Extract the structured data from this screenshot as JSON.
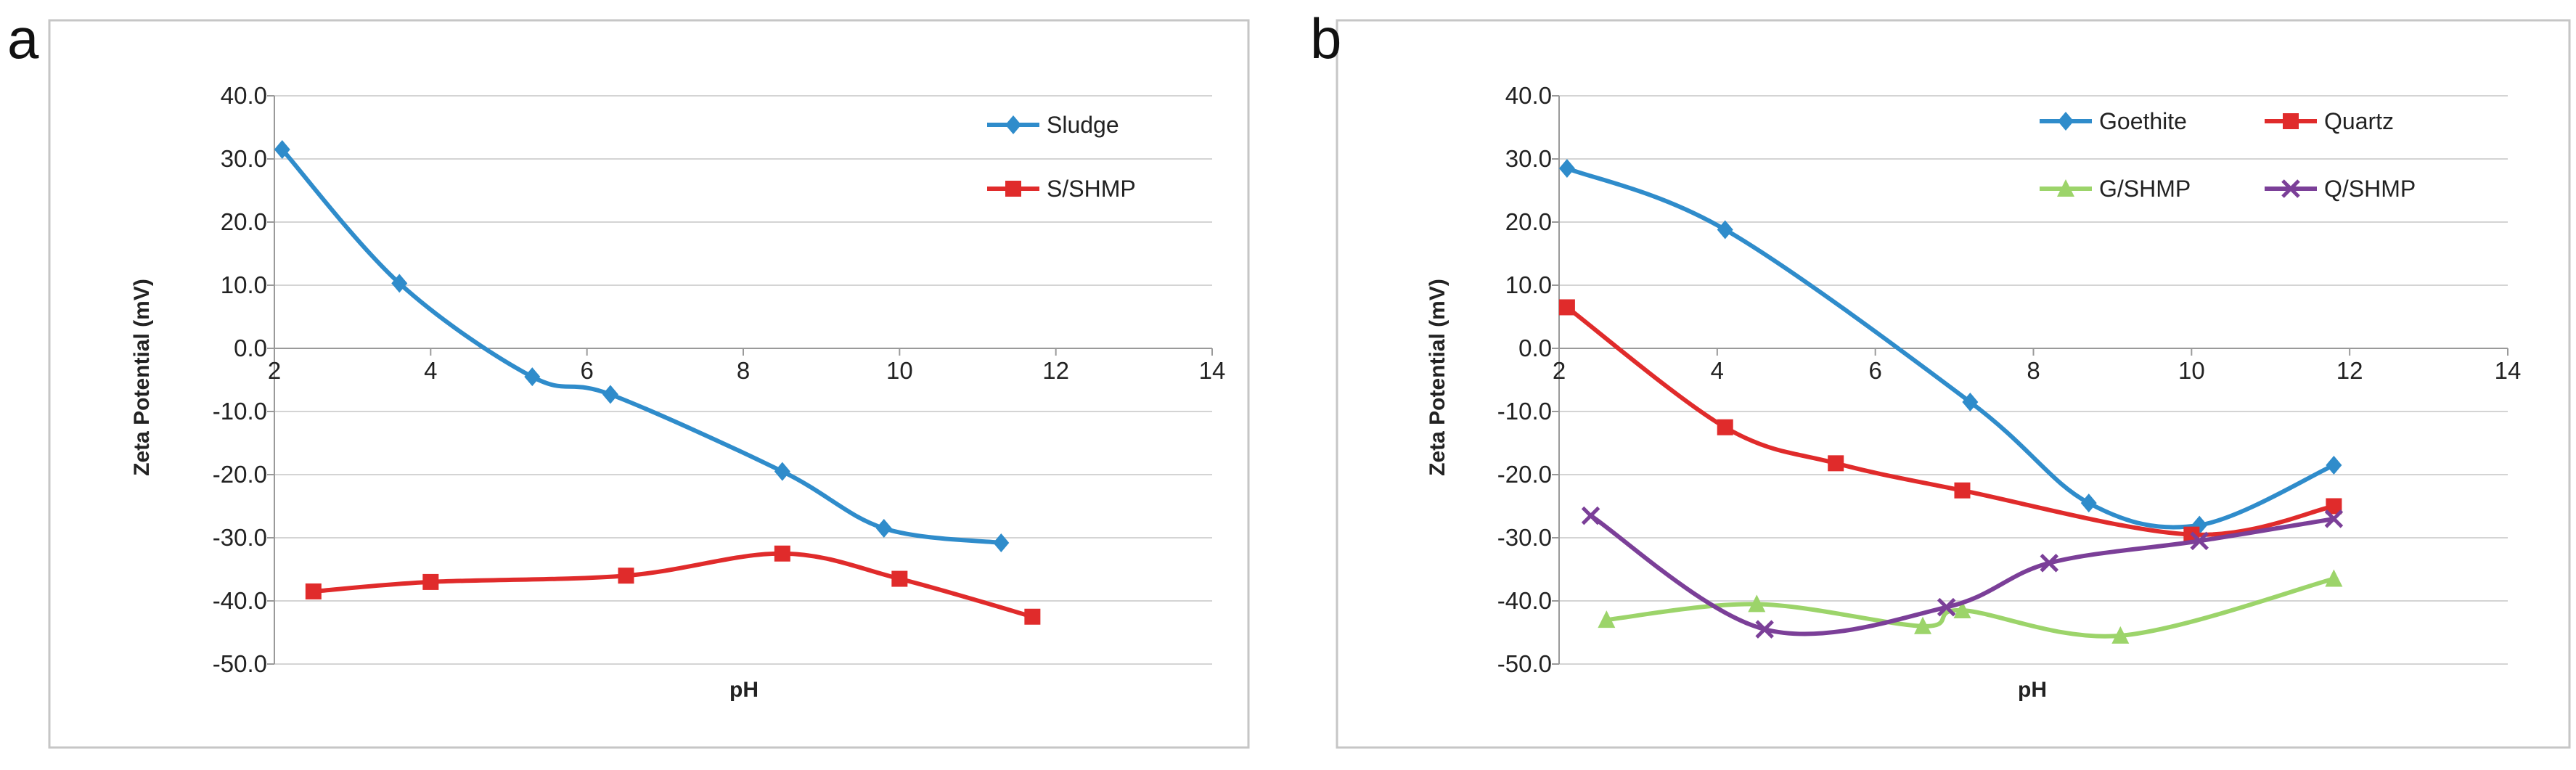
{
  "chart_data": [
    {
      "panel_label": "a",
      "type": "line",
      "title": "",
      "xlabel": "pH",
      "ylabel": "Zeta Potential (mV)",
      "xlim": [
        2,
        14
      ],
      "ylim": [
        -50,
        40
      ],
      "x_ticks": [
        "2",
        "4",
        "6",
        "8",
        "10",
        "12",
        "14"
      ],
      "y_ticks": [
        "40.0",
        "30.0",
        "20.0",
        "10.0",
        "0.0",
        "-10.0",
        "-20.0",
        "-30.0",
        "-40.0",
        "-50.0"
      ],
      "legend_position": "top-right",
      "legend_layout": "column",
      "series": [
        {
          "name": "Sludge",
          "color": "#2f8ccb",
          "marker": "diamond",
          "x": [
            2.1,
            3.6,
            5.3,
            6.3,
            8.5,
            9.8,
            11.3
          ],
          "values": [
            31.5,
            10.3,
            -4.5,
            -7.3,
            -19.5,
            -28.5,
            -30.8
          ]
        },
        {
          "name": "S/SHMP",
          "color": "#e02b2b",
          "marker": "square",
          "x": [
            2.5,
            4.0,
            6.5,
            8.5,
            10.0,
            11.7
          ],
          "values": [
            -38.5,
            -37.0,
            -36.0,
            -32.5,
            -36.5,
            -42.5
          ]
        }
      ]
    },
    {
      "panel_label": "b",
      "type": "line",
      "title": "",
      "xlabel": "pH",
      "ylabel": "Zeta Potential (mV)",
      "xlim": [
        2,
        14
      ],
      "ylim": [
        -50,
        40
      ],
      "x_ticks": [
        "2",
        "4",
        "6",
        "8",
        "10",
        "12",
        "14"
      ],
      "y_ticks": [
        "40.0",
        "30.0",
        "20.0",
        "10.0",
        "0.0",
        "-10.0",
        "-20.0",
        "-30.0",
        "-40.0",
        "-50.0"
      ],
      "legend_position": "top-right",
      "legend_layout": "grid",
      "series": [
        {
          "name": "Goethite",
          "color": "#2f8ccb",
          "marker": "diamond",
          "x": [
            2.1,
            4.1,
            7.2,
            8.7,
            10.1,
            11.8
          ],
          "values": [
            28.5,
            18.8,
            -8.5,
            -24.5,
            -28.0,
            -18.5
          ]
        },
        {
          "name": "Quartz",
          "color": "#e02b2b",
          "marker": "square",
          "x": [
            2.1,
            4.1,
            5.5,
            7.1,
            10.0,
            11.8
          ],
          "values": [
            6.5,
            -12.5,
            -18.2,
            -22.5,
            -29.5,
            -25.0
          ]
        },
        {
          "name": "G/SHMP",
          "color": "#9cd46a",
          "marker": "triangle",
          "x": [
            2.6,
            4.5,
            6.6,
            7.1,
            9.1,
            11.8
          ],
          "values": [
            -43.0,
            -40.5,
            -44.0,
            -41.5,
            -45.5,
            -36.5
          ]
        },
        {
          "name": "Q/SHMP",
          "color": "#7b3f98",
          "marker": "x",
          "x": [
            2.4,
            4.6,
            6.9,
            8.2,
            10.1,
            11.8
          ],
          "values": [
            -26.5,
            -44.5,
            -41.0,
            -34.0,
            -30.5,
            -27.0
          ]
        }
      ]
    }
  ]
}
